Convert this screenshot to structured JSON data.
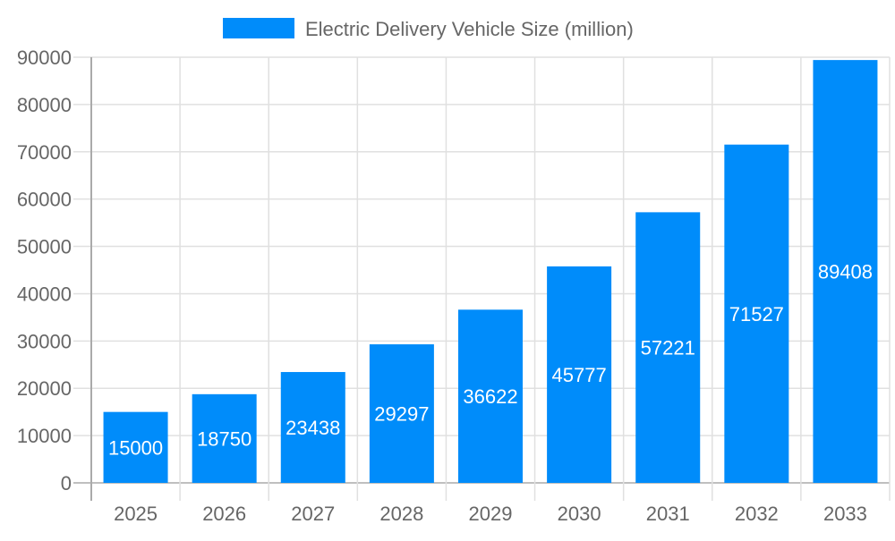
{
  "chart_data": {
    "type": "bar",
    "title": "",
    "xlabel": "",
    "ylabel": "",
    "categories": [
      "2025",
      "2026",
      "2027",
      "2028",
      "2029",
      "2030",
      "2031",
      "2032",
      "2033"
    ],
    "series": [
      {
        "name": "Electric Delivery Vehicle Size (million)",
        "values": [
          15000,
          18750,
          23438,
          29297,
          36622,
          45777,
          57221,
          71527,
          89408
        ],
        "color": "#008CFA"
      }
    ],
    "ylim": [
      0,
      90000
    ],
    "yticks": [
      0,
      10000,
      20000,
      30000,
      40000,
      50000,
      60000,
      70000,
      80000,
      90000
    ],
    "grid": true,
    "legend": "top",
    "data_labels": true,
    "colors": {
      "bar": "#008CFA",
      "grid": "#e0e0e0",
      "axis": "#aaaaaa",
      "text": "#666666",
      "label": "#ffffff"
    }
  }
}
